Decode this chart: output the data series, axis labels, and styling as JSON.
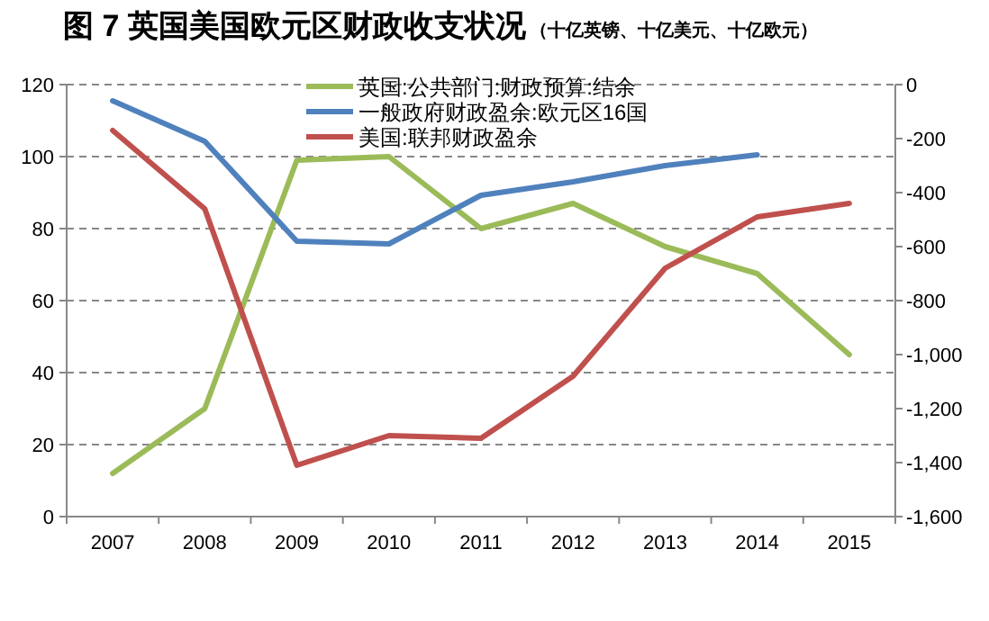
{
  "chart_data": {
    "type": "line",
    "title": "图 7 英国美国欧元区财政收支状况",
    "subtitle": "（十亿英镑、十亿美元、十亿欧元）",
    "categories": [
      "2007",
      "2008",
      "2009",
      "2010",
      "2011",
      "2012",
      "2013",
      "2014",
      "2015"
    ],
    "series": [
      {
        "name": "英国:公共部门:财政预算:结余",
        "color": "#9bbb59",
        "values": [
          12,
          30,
          99,
          100,
          80,
          87,
          75,
          67.5,
          45
        ]
      },
      {
        "name": "一般政府财政盈余:欧元区16国",
        "color": "#4f81bd",
        "axis": "y2",
        "values": [
          -60,
          -210,
          -580,
          -590,
          -410,
          -360,
          -300,
          -260,
          null
        ]
      },
      {
        "name": "美国:联邦财政盈余",
        "color": "#c0504d",
        "axis": "y2",
        "values": [
          -170,
          -460,
          -1410,
          -1300,
          -1310,
          -1080,
          -680,
          -490,
          -440
        ]
      }
    ],
    "ylim": [
      0,
      120
    ],
    "yticks": [
      0,
      20,
      40,
      60,
      80,
      100,
      120
    ],
    "y2lim": [
      -1600,
      0
    ],
    "y2ticks": [
      {
        "value": -1600,
        "label": "-1,600"
      },
      {
        "value": -1400,
        "label": "-1,400"
      },
      {
        "value": -1200,
        "label": "-1,200"
      },
      {
        "value": -1000,
        "label": "-1,000"
      },
      -800,
      -600,
      -400,
      -200,
      0
    ],
    "grid": "y",
    "legend": "top",
    "marker": "none",
    "line_style": "solid"
  }
}
